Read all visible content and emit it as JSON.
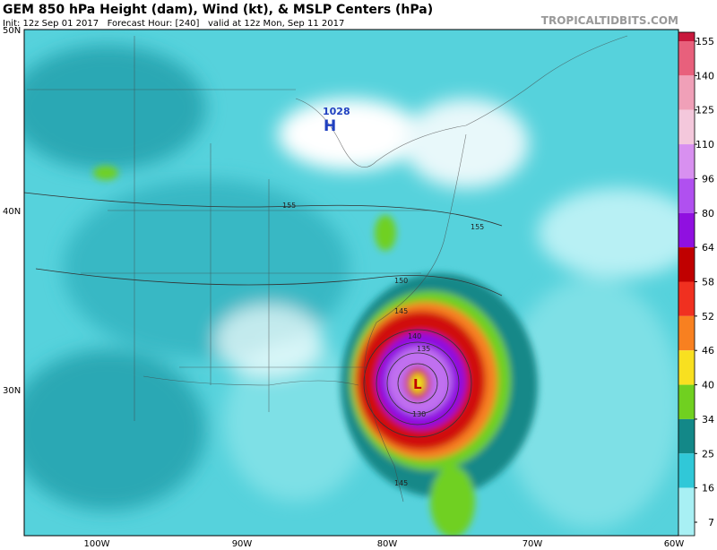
{
  "header": {
    "title": "GEM 850 hPa Height (dam), Wind (kt), & MSLP Centers (hPa)",
    "subtitle": "Init: 12z Sep 01 2017   Forecast Hour: [240]   valid at 12z Mon, Sep 11 2017",
    "watermark": "TROPICALTIDBITS.COM"
  },
  "map": {
    "lat_labels": [
      "50N",
      "40N",
      "30N"
    ],
    "lon_labels": [
      "100W",
      "90W",
      "80W",
      "70W",
      "60W"
    ],
    "high": {
      "pressure": "1028",
      "symbol": "H"
    },
    "low": {
      "symbol": "L"
    },
    "contour_labels": [
      "155",
      "155",
      "150",
      "145",
      "140",
      "135",
      "130",
      "145"
    ]
  },
  "colorbar": {
    "ticks": [
      155,
      140,
      125,
      110,
      96,
      80,
      64,
      58,
      52,
      46,
      40,
      34,
      25,
      16,
      7
    ],
    "colors": [
      "#c8183c",
      "#e8607c",
      "#f0a0b8",
      "#f4c8dc",
      "#d890f0",
      "#b050f0",
      "#9010e0",
      "#c00000",
      "#f03020",
      "#f88020",
      "#f8e020",
      "#70d020",
      "#138888",
      "#30c8d8",
      "#a8f0f4"
    ]
  }
}
